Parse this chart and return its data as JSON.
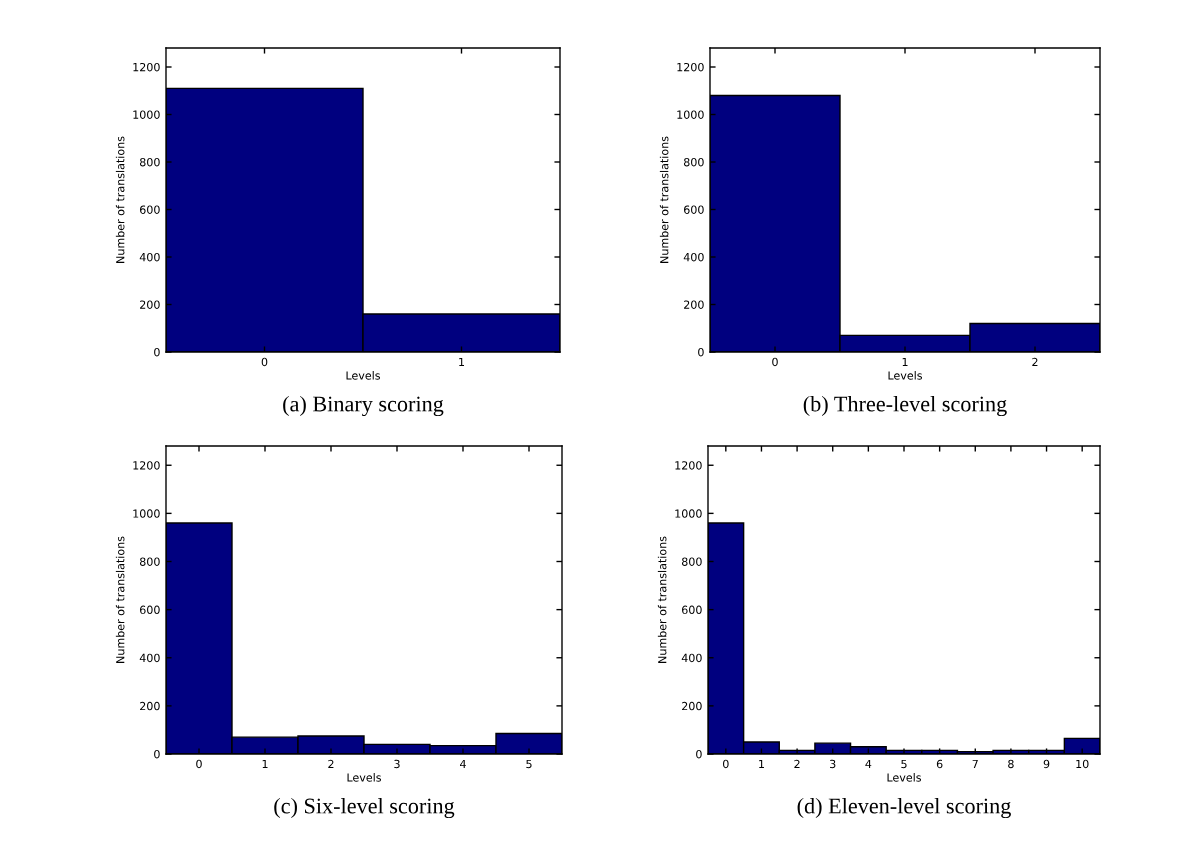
{
  "chart_data": [
    {
      "type": "bar",
      "title": "(a) Binary scoring",
      "xlabel": "Levels",
      "ylabel": "Number of translations",
      "categories": [
        "0",
        "1"
      ],
      "values": [
        1110,
        160
      ],
      "color": "#00007f",
      "ylim": [
        0,
        1280
      ],
      "yticks": [
        0,
        200,
        400,
        600,
        800,
        1000,
        1200
      ],
      "grid": false,
      "legend": false
    },
    {
      "type": "bar",
      "title": "(b) Three-level scoring",
      "xlabel": "Levels",
      "ylabel": "Number of translations",
      "categories": [
        "0",
        "1",
        "2"
      ],
      "values": [
        1080,
        70,
        120
      ],
      "color": "#00007f",
      "ylim": [
        0,
        1280
      ],
      "yticks": [
        0,
        200,
        400,
        600,
        800,
        1000,
        1200
      ],
      "grid": false,
      "legend": false
    },
    {
      "type": "bar",
      "title": "(c) Six-level scoring",
      "xlabel": "Levels",
      "ylabel": "Number of translations",
      "categories": [
        "0",
        "1",
        "2",
        "3",
        "4",
        "5"
      ],
      "values": [
        960,
        70,
        75,
        40,
        35,
        85
      ],
      "color": "#00007f",
      "ylim": [
        0,
        1280
      ],
      "yticks": [
        0,
        200,
        400,
        600,
        800,
        1000,
        1200
      ],
      "grid": false,
      "legend": false
    },
    {
      "type": "bar",
      "title": "(d) Eleven-level scoring",
      "xlabel": "Levels",
      "ylabel": "Number of translations",
      "categories": [
        "0",
        "1",
        "2",
        "3",
        "4",
        "5",
        "6",
        "7",
        "8",
        "9",
        "10"
      ],
      "values": [
        960,
        50,
        15,
        45,
        30,
        15,
        15,
        10,
        15,
        15,
        65
      ],
      "color": "#00007f",
      "ylim": [
        0,
        1280
      ],
      "yticks": [
        0,
        200,
        400,
        600,
        800,
        1000,
        1200
      ],
      "grid": false,
      "legend": false
    }
  ]
}
